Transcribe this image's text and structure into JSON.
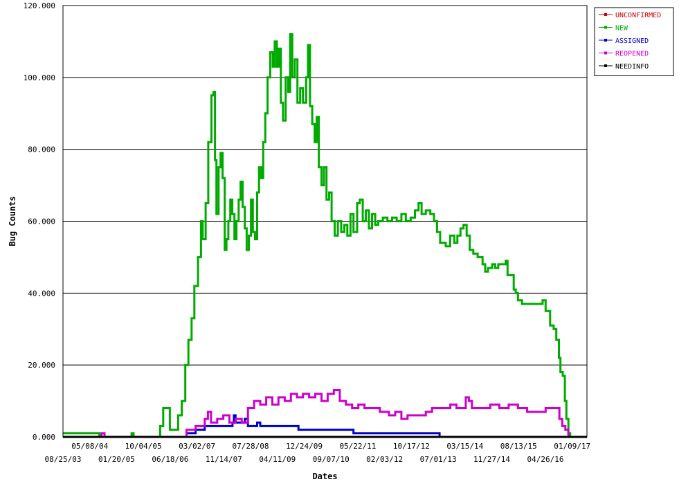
{
  "chart_data": {
    "type": "line",
    "title": "",
    "xlabel": "Dates",
    "ylabel": "Bug Counts",
    "ylim": [
      0,
      120
    ],
    "xlim": [
      "2003-08-25",
      "2017-11-15"
    ],
    "grid": true,
    "legend_position": "top-right",
    "y_tick_labels": [
      "0.000",
      "20.000",
      "40.000",
      "60.000",
      "80.000",
      "100.000",
      "120.000"
    ],
    "x_tick_labels_top": [
      "05/08/04",
      "10/04/05",
      "03/02/07",
      "07/28/08",
      "12/24/09",
      "05/22/11",
      "10/17/12",
      "03/15/14",
      "08/13/15",
      "01/09/17"
    ],
    "x_tick_labels_bottom": [
      "08/25/03",
      "01/20/05",
      "06/18/06",
      "11/14/07",
      "04/11/09",
      "09/07/10",
      "02/03/12",
      "07/01/13",
      "11/27/14",
      "04/26/16"
    ],
    "series": [
      {
        "name": "UNCONFIRMED",
        "color": "#cc0000",
        "points": [
          [
            "2003-08-25",
            0
          ],
          [
            "2017-11-15",
            0
          ]
        ]
      },
      {
        "name": "NEW",
        "color": "#00aa00",
        "points": [
          [
            "2003-08-25",
            1
          ],
          [
            "2004-08-15",
            1
          ],
          [
            "2004-08-20",
            0
          ],
          [
            "2005-07-01",
            0
          ],
          [
            "2005-07-05",
            1
          ],
          [
            "2005-07-20",
            1
          ],
          [
            "2005-07-25",
            0
          ],
          [
            "2006-01-01",
            0
          ],
          [
            "2006-04-15",
            3
          ],
          [
            "2006-05-15",
            8
          ],
          [
            "2006-07-15",
            8
          ],
          [
            "2006-07-20",
            2
          ],
          [
            "2006-09-20",
            2
          ],
          [
            "2006-10-10",
            6
          ],
          [
            "2006-11-15",
            10
          ],
          [
            "2006-12-20",
            20
          ],
          [
            "2007-01-20",
            27
          ],
          [
            "2007-02-20",
            33
          ],
          [
            "2007-03-20",
            42
          ],
          [
            "2007-04-25",
            50
          ],
          [
            "2007-05-25",
            60
          ],
          [
            "2007-06-10",
            55
          ],
          [
            "2007-07-10",
            65
          ],
          [
            "2007-08-05",
            82
          ],
          [
            "2007-09-05",
            95
          ],
          [
            "2007-09-25",
            96
          ],
          [
            "2007-10-10",
            77
          ],
          [
            "2007-10-25",
            62
          ],
          [
            "2007-11-15",
            75
          ],
          [
            "2007-12-05",
            79
          ],
          [
            "2007-12-25",
            72
          ],
          [
            "2008-01-15",
            52
          ],
          [
            "2008-02-01",
            55
          ],
          [
            "2008-02-20",
            60
          ],
          [
            "2008-03-10",
            66
          ],
          [
            "2008-03-30",
            62
          ],
          [
            "2008-04-20",
            55
          ],
          [
            "2008-05-10",
            60
          ],
          [
            "2008-06-01",
            66
          ],
          [
            "2008-06-20",
            71
          ],
          [
            "2008-07-10",
            64
          ],
          [
            "2008-08-01",
            58
          ],
          [
            "2008-08-20",
            52
          ],
          [
            "2008-09-10",
            56
          ],
          [
            "2008-10-01",
            66
          ],
          [
            "2008-10-20",
            57
          ],
          [
            "2008-11-10",
            55
          ],
          [
            "2008-12-01",
            68
          ],
          [
            "2008-12-20",
            75
          ],
          [
            "2009-01-10",
            72
          ],
          [
            "2009-01-31",
            82
          ],
          [
            "2009-02-20",
            90
          ],
          [
            "2009-03-15",
            100
          ],
          [
            "2009-04-10",
            107
          ],
          [
            "2009-05-05",
            103
          ],
          [
            "2009-05-25",
            110
          ],
          [
            "2009-06-15",
            103
          ],
          [
            "2009-07-05",
            108
          ],
          [
            "2009-07-25",
            93
          ],
          [
            "2009-08-15",
            88
          ],
          [
            "2009-09-10",
            100
          ],
          [
            "2009-10-05",
            96
          ],
          [
            "2009-10-25",
            112
          ],
          [
            "2009-11-15",
            100
          ],
          [
            "2009-12-10",
            105
          ],
          [
            "2010-01-05",
            93
          ],
          [
            "2010-02-01",
            97
          ],
          [
            "2010-03-01",
            93
          ],
          [
            "2010-04-01",
            100
          ],
          [
            "2010-04-20",
            109
          ],
          [
            "2010-05-10",
            92
          ],
          [
            "2010-06-01",
            87
          ],
          [
            "2010-06-25",
            82
          ],
          [
            "2010-07-15",
            89
          ],
          [
            "2010-08-05",
            75
          ],
          [
            "2010-09-01",
            70
          ],
          [
            "2010-09-25",
            75
          ],
          [
            "2010-10-20",
            66
          ],
          [
            "2010-11-15",
            68
          ],
          [
            "2010-12-10",
            60
          ],
          [
            "2011-01-10",
            56
          ],
          [
            "2011-02-10",
            60
          ],
          [
            "2011-03-15",
            57
          ],
          [
            "2011-04-15",
            59
          ],
          [
            "2011-05-15",
            56
          ],
          [
            "2011-06-15",
            62
          ],
          [
            "2011-07-15",
            57
          ],
          [
            "2011-08-20",
            65
          ],
          [
            "2011-09-15",
            66
          ],
          [
            "2011-10-15",
            60
          ],
          [
            "2011-11-15",
            63
          ],
          [
            "2011-12-15",
            58
          ],
          [
            "2012-01-15",
            62
          ],
          [
            "2012-02-15",
            59
          ],
          [
            "2012-03-15",
            60
          ],
          [
            "2012-05-01",
            61
          ],
          [
            "2012-06-15",
            60
          ],
          [
            "2012-08-01",
            61
          ],
          [
            "2012-09-15",
            60
          ],
          [
            "2012-11-01",
            62
          ],
          [
            "2012-12-15",
            60
          ],
          [
            "2013-02-01",
            61
          ],
          [
            "2013-03-15",
            63
          ],
          [
            "2013-04-20",
            65
          ],
          [
            "2013-05-20",
            62
          ],
          [
            "2013-07-01",
            63
          ],
          [
            "2013-08-15",
            62
          ],
          [
            "2013-09-20",
            60
          ],
          [
            "2013-10-20",
            57
          ],
          [
            "2013-11-20",
            54
          ],
          [
            "2014-01-15",
            53
          ],
          [
            "2014-02-28",
            56
          ],
          [
            "2014-04-10",
            54
          ],
          [
            "2014-05-10",
            56
          ],
          [
            "2014-06-10",
            58
          ],
          [
            "2014-07-10",
            59
          ],
          [
            "2014-08-10",
            56
          ],
          [
            "2014-09-10",
            52
          ],
          [
            "2014-10-15",
            51
          ],
          [
            "2014-11-27",
            50
          ],
          [
            "2015-01-15",
            48
          ],
          [
            "2015-02-10",
            46
          ],
          [
            "2015-03-10",
            47
          ],
          [
            "2015-04-20",
            48
          ],
          [
            "2015-05-20",
            47
          ],
          [
            "2015-06-20",
            48
          ],
          [
            "2015-07-20",
            48
          ],
          [
            "2015-09-01",
            49
          ],
          [
            "2015-09-20",
            45
          ],
          [
            "2015-11-01",
            45
          ],
          [
            "2015-11-20",
            41
          ],
          [
            "2015-12-10",
            40
          ],
          [
            "2016-01-01",
            38
          ],
          [
            "2016-02-10",
            37
          ],
          [
            "2016-06-01",
            37
          ],
          [
            "2016-08-01",
            37
          ],
          [
            "2016-09-01",
            38
          ],
          [
            "2016-10-01",
            35
          ],
          [
            "2016-11-15",
            31
          ],
          [
            "2016-12-20",
            30
          ],
          [
            "2017-01-15",
            27
          ],
          [
            "2017-02-10",
            22
          ],
          [
            "2017-02-25",
            18
          ],
          [
            "2017-03-20",
            17
          ],
          [
            "2017-04-10",
            10
          ],
          [
            "2017-04-25",
            5
          ],
          [
            "2017-05-15",
            1
          ],
          [
            "2017-06-01",
            0
          ]
        ]
      },
      {
        "name": "ASSIGNED",
        "color": "#0000cc",
        "points": [
          [
            "2003-08-25",
            0
          ],
          [
            "2006-12-20",
            0
          ],
          [
            "2007-01-01",
            1
          ],
          [
            "2007-04-01",
            2
          ],
          [
            "2007-07-01",
            3
          ],
          [
            "2008-04-01",
            4
          ],
          [
            "2008-04-15",
            6
          ],
          [
            "2008-05-01",
            4
          ],
          [
            "2008-07-01",
            4
          ],
          [
            "2008-08-01",
            5
          ],
          [
            "2008-09-01",
            3
          ],
          [
            "2008-12-01",
            4
          ],
          [
            "2009-01-01",
            3
          ],
          [
            "2010-01-01",
            3
          ],
          [
            "2010-01-15",
            2
          ],
          [
            "2011-07-01",
            2
          ],
          [
            "2011-07-15",
            1
          ],
          [
            "2013-11-01",
            1
          ],
          [
            "2013-11-15",
            0
          ],
          [
            "2017-11-15",
            0
          ]
        ]
      },
      {
        "name": "REOPENED",
        "color": "#cc00cc",
        "points": [
          [
            "2003-08-25",
            0
          ],
          [
            "2004-09-01",
            0
          ],
          [
            "2004-09-10",
            1
          ],
          [
            "2004-10-10",
            0
          ],
          [
            "2006-12-01",
            0
          ],
          [
            "2007-01-01",
            2
          ],
          [
            "2007-04-01",
            3
          ],
          [
            "2007-07-01",
            5
          ],
          [
            "2007-08-01",
            7
          ],
          [
            "2007-09-01",
            4
          ],
          [
            "2007-11-01",
            5
          ],
          [
            "2008-01-01",
            6
          ],
          [
            "2008-03-01",
            4
          ],
          [
            "2008-05-01",
            5
          ],
          [
            "2008-07-01",
            4
          ],
          [
            "2008-09-01",
            8
          ],
          [
            "2008-11-01",
            10
          ],
          [
            "2009-01-01",
            9
          ],
          [
            "2009-03-01",
            11
          ],
          [
            "2009-05-01",
            9
          ],
          [
            "2009-07-01",
            11
          ],
          [
            "2009-09-01",
            10
          ],
          [
            "2009-11-01",
            12
          ],
          [
            "2010-01-01",
            11
          ],
          [
            "2010-03-01",
            12
          ],
          [
            "2010-05-01",
            11
          ],
          [
            "2010-07-01",
            12
          ],
          [
            "2010-09-01",
            10
          ],
          [
            "2010-11-01",
            12
          ],
          [
            "2011-01-01",
            13
          ],
          [
            "2011-03-01",
            10
          ],
          [
            "2011-05-01",
            9
          ],
          [
            "2011-07-01",
            8
          ],
          [
            "2011-09-01",
            9
          ],
          [
            "2011-11-01",
            8
          ],
          [
            "2012-01-01",
            8
          ],
          [
            "2012-04-01",
            7
          ],
          [
            "2012-07-01",
            6
          ],
          [
            "2012-09-01",
            7
          ],
          [
            "2012-11-01",
            5
          ],
          [
            "2013-01-01",
            6
          ],
          [
            "2013-04-01",
            6
          ],
          [
            "2013-07-01",
            7
          ],
          [
            "2013-09-01",
            8
          ],
          [
            "2013-12-01",
            8
          ],
          [
            "2014-03-01",
            9
          ],
          [
            "2014-05-01",
            8
          ],
          [
            "2014-08-01",
            11
          ],
          [
            "2014-09-01",
            10
          ],
          [
            "2014-10-01",
            8
          ],
          [
            "2015-01-01",
            8
          ],
          [
            "2015-04-01",
            9
          ],
          [
            "2015-07-01",
            8
          ],
          [
            "2015-10-01",
            9
          ],
          [
            "2016-01-01",
            8
          ],
          [
            "2016-04-01",
            7
          ],
          [
            "2016-07-01",
            7
          ],
          [
            "2016-10-01",
            8
          ],
          [
            "2017-01-01",
            8
          ],
          [
            "2017-02-15",
            5
          ],
          [
            "2017-03-15",
            3
          ],
          [
            "2017-04-15",
            2
          ],
          [
            "2017-05-15",
            0
          ],
          [
            "2017-11-15",
            0
          ]
        ]
      },
      {
        "name": "NEEDINFO",
        "color": "#000000",
        "points": [
          [
            "2003-08-25",
            0
          ],
          [
            "2017-11-15",
            0
          ]
        ]
      }
    ]
  }
}
